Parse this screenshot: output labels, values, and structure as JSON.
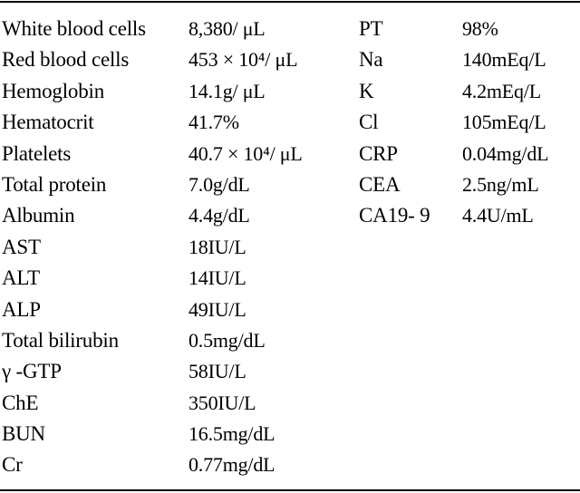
{
  "left_rows": [
    {
      "label": "White blood cells",
      "value": "8,380/ μL"
    },
    {
      "label": "Red blood cells",
      "value": "453 × 10⁴/ μL"
    },
    {
      "label": "Hemoglobin",
      "value": "14.1g/ μL"
    },
    {
      "label": "Hematocrit",
      "value": "41.7%"
    },
    {
      "label": "Platelets",
      "value": "40.7 × 10⁴/ μL"
    },
    {
      "label": "Total protein",
      "value": "7.0g/dL"
    },
    {
      "label": "Albumin",
      "value": "4.4g/dL"
    },
    {
      "label": "AST",
      "value": "18IU/L"
    },
    {
      "label": "ALT",
      "value": "14IU/L"
    },
    {
      "label": "ALP",
      "value": "49IU/L"
    },
    {
      "label": "Total bilirubin",
      "value": "0.5mg/dL"
    },
    {
      "label": " γ -GTP",
      "value": "58IU/L"
    },
    {
      "label": "ChE",
      "value": "350IU/L"
    },
    {
      "label": "BUN",
      "value": "16.5mg/dL"
    },
    {
      "label": "Cr",
      "value": "0.77mg/dL"
    }
  ],
  "right_rows": [
    {
      "label": "PT",
      "value": "98%"
    },
    {
      "label": "Na",
      "value": "140mEq/L"
    },
    {
      "label": "K",
      "value": "4.2mEq/L"
    },
    {
      "label": "Cl",
      "value": "105mEq/L"
    },
    {
      "label": "CRP",
      "value": "0.04mg/dL"
    },
    {
      "label": "CEA",
      "value": "2.5ng/mL"
    },
    {
      "label": "CA19- 9",
      "value": "4.4U/mL"
    }
  ]
}
